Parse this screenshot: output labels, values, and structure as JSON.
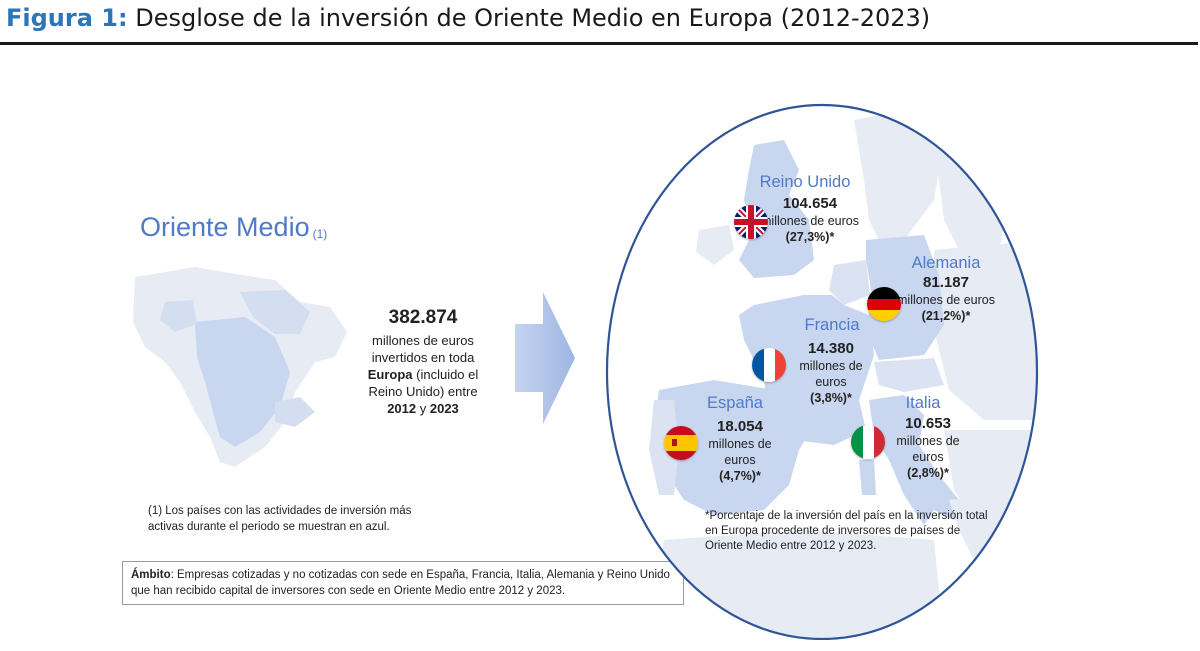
{
  "figure": {
    "label": "Figura 1:",
    "title": "Desglose de la inversión de Oriente Medio en Europa (2012-2023)"
  },
  "source_region": {
    "name": "Oriente Medio",
    "note_ref": "(1)"
  },
  "total": {
    "amount": "382.874",
    "line1": "millones de euros",
    "line2": "invertidos en toda",
    "bold_europa": "Europa",
    "line3_rest": " (incluido el",
    "line4": "Reino Unido) entre",
    "year_start": "2012",
    "and_word": " y ",
    "year_end": "2023"
  },
  "footnote": "(1) Los países con las actividades de inversión más activas durante el periodo se muestran en azul.",
  "scope": {
    "label": "Ámbito",
    "text": ": Empresas cotizadas y no cotizadas con sede en España, Francia, Italia, Alemania y Reino Unido que han recibido capital de inversores con sede en Oriente Medio entre 2012 y 2023."
  },
  "countries": {
    "uk": {
      "name": "Reino Unido",
      "amount": "104.654",
      "unit": "millones de euros",
      "pct": "(27,3%)*",
      "flag": "uk-flag"
    },
    "de": {
      "name": "Alemania",
      "amount": "81.187",
      "unit": "millones de euros",
      "pct": "(21,2%)*",
      "flag": "germany-flag"
    },
    "fr": {
      "name": "Francia",
      "amount": "14.380",
      "unit": "millones de euros",
      "pct": "(3,8%)*",
      "flag": "france-flag"
    },
    "es": {
      "name": "España",
      "amount": "18.054",
      "unit": "millones de euros",
      "pct": "(4,7%)*",
      "flag": "spain-flag"
    },
    "it": {
      "name": "Italia",
      "amount": "10.653",
      "unit": "millones de euros",
      "pct": "(2,8%)*",
      "flag": "italy-flag"
    }
  },
  "pct_note": "*Porcentaje de la inversión del país en la inversión total en Europa procedente de inversores de países de Oriente Medio entre 2012 y 2023.",
  "colors": {
    "accent_blue": "#4f7ac7",
    "map_highlight": "#c9d6ef",
    "map_other": "#e6ebf4",
    "circle": "#2f5597"
  }
}
